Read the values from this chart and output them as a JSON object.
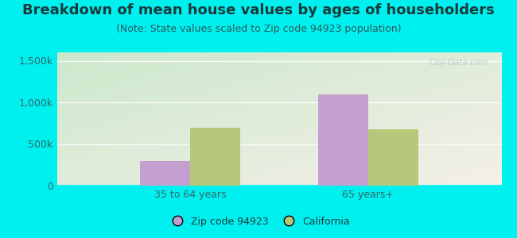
{
  "title": "Breakdown of mean house values by ages of householders",
  "subtitle": "(Note: State values scaled to Zip code 94923 population)",
  "categories": [
    "35 to 64 years",
    "65 years+"
  ],
  "zip_values": [
    300000,
    1100000
  ],
  "ca_values": [
    700000,
    680000
  ],
  "zip_color": "#c4a0d0",
  "ca_color": "#b8c87a",
  "background_outer": "#00f0f0",
  "bg_color_topleft": "#d8edd8",
  "bg_color_topright": "#f0efe0",
  "bg_color_bottom": "#e8f0e0",
  "ylim": [
    0,
    1600000
  ],
  "yticks": [
    0,
    500000,
    1000000,
    1500000
  ],
  "ytick_labels": [
    "0",
    "500k",
    "1,000k",
    "1,500k"
  ],
  "legend_labels": [
    "Zip code 94923",
    "California"
  ],
  "title_fontsize": 13,
  "subtitle_fontsize": 9,
  "tick_fontsize": 9,
  "legend_fontsize": 9,
  "title_color": "#1a3a3a",
  "subtitle_color": "#2a5a5a",
  "tick_color": "#336666",
  "watermark": "City-Data.com"
}
